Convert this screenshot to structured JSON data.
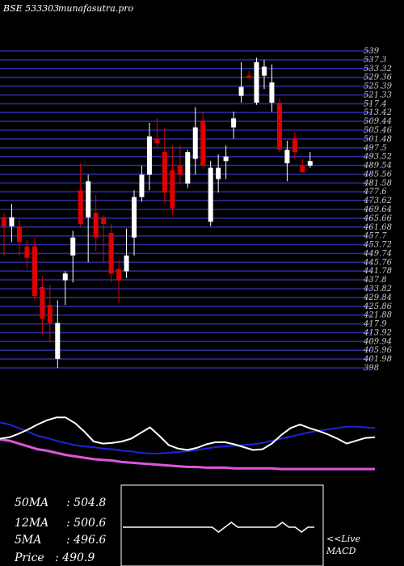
{
  "header": {
    "symbol": "BSE 533303",
    "site": "munafasutra.pro"
  },
  "colors": {
    "grid": "#2b2b9a",
    "bull": "#ffffff",
    "bear": "#e00000",
    "ma_long": "#dd55dd",
    "ma_mid": "#2222dd",
    "ma_short": "#ffffff",
    "macd_line": "#ffffff"
  },
  "chart_data": [
    {
      "type": "candlestick",
      "price_tick_labels": [
        "539",
        "537.3",
        "533.32",
        "529.36",
        "525.39",
        "521.33",
        "517.4",
        "513.42",
        "509.44",
        "505.46",
        "501.48",
        "497.5",
        "493.52",
        "489.54",
        "485.56",
        "481.58",
        "477.6",
        "473.62",
        "469.64",
        "465.66",
        "461.68",
        "457.7",
        "453.72",
        "449.74",
        "445.76",
        "441.78",
        "437.8",
        "433.82",
        "429.84",
        "425.86",
        "421.88",
        "417.9",
        "413.92",
        "409.94",
        "405.96",
        "401.98",
        "398"
      ],
      "ylim": [
        398,
        539
      ],
      "candles": [
        {
          "o": 465.0,
          "h": 467.0,
          "l": 448.0,
          "c": 461.0
        },
        {
          "o": 461.0,
          "h": 471.0,
          "l": 454.0,
          "c": 465.0
        },
        {
          "o": 461.0,
          "h": 464.0,
          "l": 448.0,
          "c": 454.0
        },
        {
          "o": 452.0,
          "h": 455.0,
          "l": 442.0,
          "c": 447.0
        },
        {
          "o": 452.0,
          "h": 456.0,
          "l": 428.0,
          "c": 430.0
        },
        {
          "o": 434.0,
          "h": 439.0,
          "l": 413.0,
          "c": 420.0
        },
        {
          "o": 426.0,
          "h": 435.0,
          "l": 409.0,
          "c": 418.0
        },
        {
          "o": 402.0,
          "h": 428.0,
          "l": 398.0,
          "c": 418.0
        },
        {
          "o": 437.0,
          "h": 441.0,
          "l": 426.0,
          "c": 440.0
        },
        {
          "o": 448.0,
          "h": 459.0,
          "l": 436.0,
          "c": 456.0
        },
        {
          "o": 477.0,
          "h": 489.0,
          "l": 461.0,
          "c": 462.0
        },
        {
          "o": 465.0,
          "h": 484.0,
          "l": 445.0,
          "c": 481.0
        },
        {
          "o": 467.0,
          "h": 475.0,
          "l": 450.0,
          "c": 456.0
        },
        {
          "o": 465.0,
          "h": 466.0,
          "l": 445.0,
          "c": 462.0
        },
        {
          "o": 458.0,
          "h": 462.0,
          "l": 436.0,
          "c": 440.0
        },
        {
          "o": 442.0,
          "h": 446.0,
          "l": 427.0,
          "c": 437.0
        },
        {
          "o": 441.0,
          "h": 460.0,
          "l": 438.0,
          "c": 448.0
        },
        {
          "o": 456.0,
          "h": 477.0,
          "l": 448.0,
          "c": 474.0
        },
        {
          "o": 474.0,
          "h": 488.0,
          "l": 472.0,
          "c": 484.0
        },
        {
          "o": 484.0,
          "h": 507.0,
          "l": 477.0,
          "c": 501.0
        },
        {
          "o": 500.0,
          "h": 509.0,
          "l": 496.0,
          "c": 498.0
        },
        {
          "o": 494.0,
          "h": 505.0,
          "l": 471.0,
          "c": 476.0
        },
        {
          "o": 486.0,
          "h": 497.0,
          "l": 466.0,
          "c": 469.0
        },
        {
          "o": 488.0,
          "h": 497.0,
          "l": 480.0,
          "c": 484.0
        },
        {
          "o": 480.0,
          "h": 495.0,
          "l": 478.0,
          "c": 494.0
        },
        {
          "o": 491.0,
          "h": 514.0,
          "l": 484.0,
          "c": 505.0
        },
        {
          "o": 508.0,
          "h": 512.0,
          "l": 489.0,
          "c": 488.0
        },
        {
          "o": 463.0,
          "h": 490.0,
          "l": 461.0,
          "c": 487.0
        },
        {
          "o": 482.0,
          "h": 493.0,
          "l": 476.0,
          "c": 487.0
        },
        {
          "o": 490.0,
          "h": 497.0,
          "l": 482.0,
          "c": 492.0
        },
        {
          "o": 505.0,
          "h": 512.0,
          "l": 500.0,
          "c": 509.0
        },
        {
          "o": 519.0,
          "h": 534.0,
          "l": 516.0,
          "c": 523.0
        },
        {
          "o": 528.0,
          "h": 530.0,
          "l": 527.0,
          "c": 527.0
        },
        {
          "o": 516.0,
          "h": 536.0,
          "l": 515.0,
          "c": 534.0
        },
        {
          "o": 528.0,
          "h": 535.0,
          "l": 522.0,
          "c": 532.0
        },
        {
          "o": 516.0,
          "h": 533.0,
          "l": 512.0,
          "c": 525.0
        },
        {
          "o": 516.0,
          "h": 518.0,
          "l": 494.0,
          "c": 495.0
        },
        {
          "o": 489.0,
          "h": 499.0,
          "l": 481.0,
          "c": 495.0
        },
        {
          "o": 500.0,
          "h": 503.0,
          "l": 491.0,
          "c": 494.0
        },
        {
          "o": 488.0,
          "h": 491.0,
          "l": 485.0,
          "c": 485.0
        },
        {
          "o": 488.0,
          "h": 494.0,
          "l": 487.0,
          "c": 490.0
        }
      ]
    },
    {
      "type": "line",
      "series": [
        {
          "key": "ma_long",
          "values": [
            93,
            95,
            99,
            103,
            107,
            109,
            112,
            115,
            117,
            119,
            121,
            122,
            123,
            125,
            126,
            127,
            128,
            129,
            130,
            131,
            132,
            132,
            133,
            133,
            133,
            134,
            134,
            134,
            134,
            134,
            135,
            135,
            135,
            135,
            135,
            135,
            135,
            135,
            135,
            135,
            135
          ]
        },
        {
          "key": "ma_mid",
          "values": [
            69,
            72,
            77,
            82,
            88,
            91,
            95,
            98,
            101,
            103,
            104,
            106,
            107,
            109,
            110,
            112,
            113,
            113,
            112,
            111,
            110,
            108,
            106,
            104,
            103,
            102,
            101,
            100,
            98,
            95,
            92,
            89,
            86,
            83,
            81,
            79,
            77,
            75,
            75,
            76,
            77
          ]
        },
        {
          "key": "ma_short",
          "values": [
            92,
            90,
            85,
            79,
            72,
            66,
            62,
            62,
            70,
            82,
            96,
            99,
            98,
            96,
            92,
            84,
            76,
            88,
            101,
            106,
            108,
            105,
            100,
            97,
            97,
            100,
            104,
            108,
            107,
            99,
            87,
            77,
            72,
            77,
            81,
            86,
            92,
            99,
            95,
            91,
            90
          ]
        }
      ]
    },
    {
      "type": "line",
      "series": [
        {
          "key": "macd_line",
          "values": [
            0,
            0,
            0,
            0,
            0,
            0,
            0,
            0,
            0,
            0,
            0,
            0,
            0,
            0,
            0,
            -1,
            0,
            1,
            0,
            0,
            0,
            0,
            0,
            0,
            0,
            1,
            0,
            0,
            -1,
            0,
            0
          ]
        }
      ]
    }
  ],
  "stats": [
    {
      "label": "50MA",
      "value": ": 504.8"
    },
    {
      "label": "12MA",
      "value": ": 500.6"
    },
    {
      "label": "5MA",
      "value": ": 496.6"
    },
    {
      "label": "Price",
      "value": "  : 490.9"
    }
  ],
  "macd_panel": {
    "live_label": "<<Live",
    "macd_label": "MACD"
  }
}
